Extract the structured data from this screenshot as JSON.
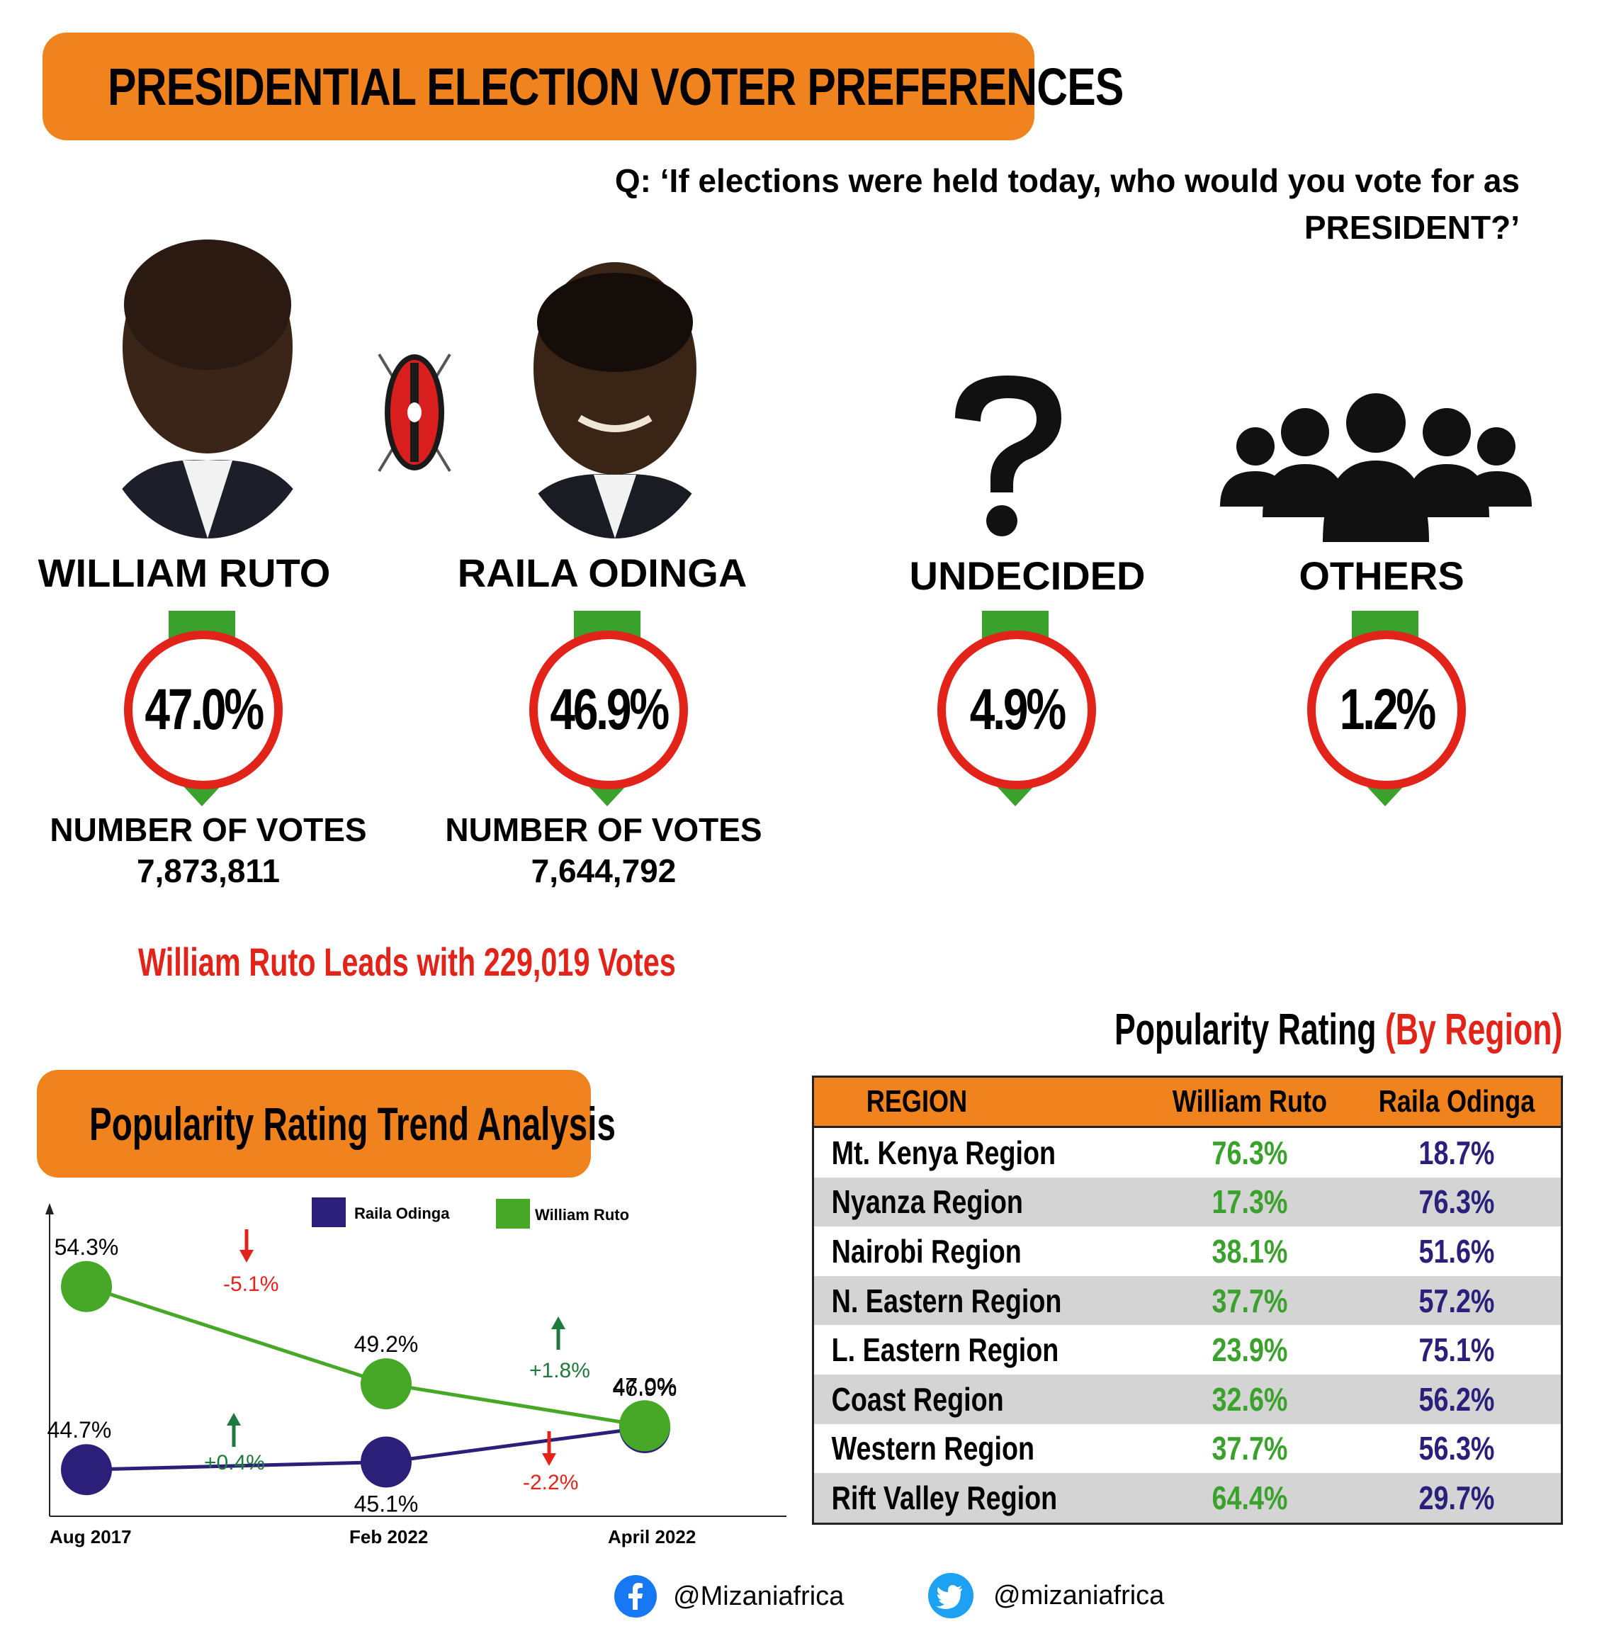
{
  "title": "PRESIDENTIAL ELECTION VOTER PREFERENCES",
  "question": "Q: ‘If elections were held today, who would you vote for as PRESIDENT?’",
  "candidates": [
    {
      "name": "WILLIAM RUTO",
      "percent": "47.0%",
      "votes_label": "NUMBER OF VOTES",
      "votes": "7,873,811"
    },
    {
      "name": "RAILA ODINGA",
      "percent": "46.9%",
      "votes_label": "NUMBER OF VOTES",
      "votes": "7,644,792"
    },
    {
      "name": "UNDECIDED",
      "percent": "4.9%"
    },
    {
      "name": "OTHERS",
      "percent": "1.2%"
    }
  ],
  "lead_text": "William Ruto Leads with 229,019 Votes",
  "trend": {
    "title": "Popularity Rating Trend Analysis",
    "changes": {
      "ruto_1": "-5.1%",
      "ruto_2": "-2.2%",
      "raila_1": "+0.4%",
      "raila_2": "+1.8%"
    }
  },
  "chart_data": {
    "type": "line",
    "title": "Popularity Rating Trend Analysis",
    "categories": [
      "Aug 2017",
      "Feb 2022",
      "April 2022"
    ],
    "series": [
      {
        "name": "Raila Odinga",
        "color": "#2b1f7a",
        "values": [
          44.7,
          45.1,
          46.9
        ],
        "labels": [
          "44.7%",
          "45.1%",
          "46.9%"
        ]
      },
      {
        "name": "William Ruto",
        "color": "#46a826",
        "values": [
          54.3,
          49.2,
          47.0
        ],
        "labels": [
          "54.3%",
          "49.2%",
          "47.0%"
        ]
      }
    ],
    "ylim": [
      43,
      56
    ],
    "legend": "top"
  },
  "region": {
    "heading_main": "Popularity Rating",
    "heading_sub": "(By Region)",
    "headers": [
      "REGION",
      "William Ruto",
      "Raila Odinga"
    ],
    "rows": [
      [
        "Mt. Kenya Region",
        "76.3%",
        "18.7%"
      ],
      [
        "Nyanza Region",
        "17.3%",
        "76.3%"
      ],
      [
        "Nairobi Region",
        "38.1%",
        "51.6%"
      ],
      [
        "N. Eastern Region",
        "37.7%",
        "57.2%"
      ],
      [
        "L. Eastern Region",
        "23.9%",
        "75.1%"
      ],
      [
        "Coast Region",
        "32.6%",
        "56.2%"
      ],
      [
        "Western Region",
        "37.7%",
        "56.3%"
      ],
      [
        "Rift Valley Region",
        "64.4%",
        "29.7%"
      ]
    ]
  },
  "socials": {
    "facebook": "@Mizaniafrica",
    "twitter": "@mizaniafrica"
  },
  "colors": {
    "orange": "#f0831e",
    "red": "#e2231a",
    "green": "#3aa12c",
    "navy": "#2b1f7a"
  }
}
